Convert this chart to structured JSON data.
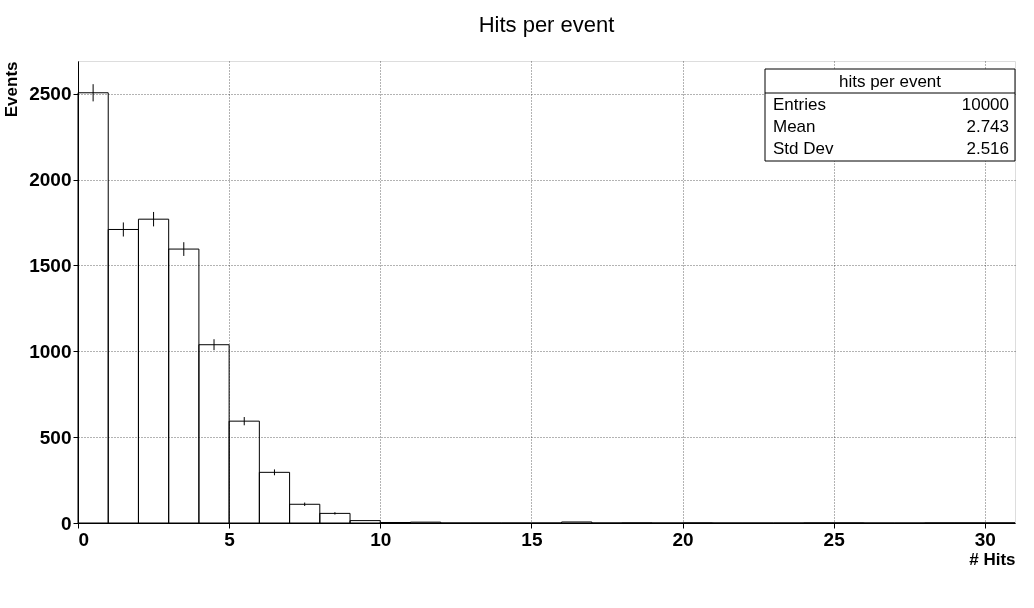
{
  "chart_data": {
    "type": "histogram",
    "title": "Hits per event",
    "xlabel": "# Hits",
    "ylabel": "Events",
    "bins": [
      0,
      1,
      2,
      3,
      4,
      5,
      6,
      7,
      8,
      9,
      10,
      11,
      12,
      13,
      14,
      15,
      16,
      17,
      18,
      19,
      20,
      21,
      22,
      23,
      24,
      25,
      26,
      27,
      28,
      29,
      30,
      31
    ],
    "values": [
      2505,
      1709,
      1769,
      1595,
      1038,
      593,
      295,
      109,
      56,
      14,
      3,
      5,
      0,
      0,
      0,
      0,
      6,
      0,
      1,
      0,
      1,
      0,
      0,
      0,
      1,
      1,
      0,
      0,
      1,
      1,
      1
    ],
    "errors": [
      50,
      41,
      42,
      40,
      32,
      24,
      17,
      10,
      7,
      null,
      null,
      null,
      null,
      null,
      null,
      null,
      null,
      null,
      null,
      null,
      null,
      null,
      null,
      null,
      null,
      null,
      null,
      null,
      null,
      null,
      null
    ],
    "color": "#000000",
    "xlim": [
      0,
      31
    ],
    "ylim": [
      0,
      2690
    ],
    "xticks": [
      0,
      5,
      10,
      15,
      20,
      25,
      30
    ],
    "yticks": [
      0,
      500,
      1000,
      1500,
      2000,
      2500
    ],
    "grid": true,
    "annotations": [
      "hits per event",
      "Entries",
      "10000",
      "Mean",
      "2.743",
      "Std Dev",
      "2.516"
    ]
  }
}
